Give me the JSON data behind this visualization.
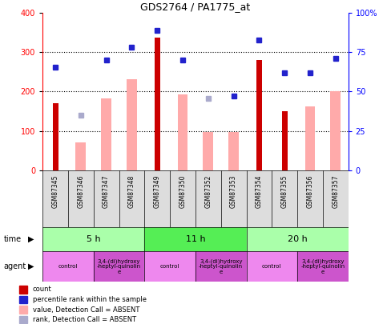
{
  "title": "GDS2764 / PA1775_at",
  "samples": [
    "GSM87345",
    "GSM87346",
    "GSM87347",
    "GSM87348",
    "GSM87349",
    "GSM87350",
    "GSM87352",
    "GSM87353",
    "GSM87354",
    "GSM87355",
    "GSM87356",
    "GSM87357"
  ],
  "count_values": [
    170,
    null,
    null,
    null,
    337,
    null,
    null,
    null,
    280,
    150,
    null,
    null
  ],
  "count_color": "#cc0000",
  "pink_bar_values": [
    null,
    70,
    183,
    232,
    null,
    193,
    97,
    97,
    null,
    null,
    163,
    200
  ],
  "pink_bar_color": "#ffaaaa",
  "blue_square_values": [
    262,
    null,
    280,
    312,
    356,
    280,
    null,
    188,
    332,
    248,
    248,
    284
  ],
  "blue_square_color": "#2222cc",
  "lavender_square_values": [
    null,
    140,
    null,
    null,
    null,
    null,
    183,
    null,
    null,
    null,
    null,
    null
  ],
  "lavender_square_color": "#aaaacc",
  "ylim_left": [
    0,
    400
  ],
  "left_ticks": [
    0,
    100,
    200,
    300,
    400
  ],
  "right_ticks": [
    0,
    25,
    50,
    75,
    100
  ],
  "right_tick_labels": [
    "0",
    "25",
    "50",
    "75",
    "100%"
  ],
  "dotted_lines": [
    100,
    200,
    300
  ],
  "time_groups": [
    {
      "label": "5 h",
      "start": 0,
      "end": 4,
      "color": "#aaffaa"
    },
    {
      "label": "11 h",
      "start": 4,
      "end": 8,
      "color": "#55ee55"
    },
    {
      "label": "20 h",
      "start": 8,
      "end": 12,
      "color": "#aaffaa"
    }
  ],
  "agent_groups": [
    {
      "label": "control",
      "start": 0,
      "end": 2,
      "color": "#ee88ee"
    },
    {
      "label": "3,4-(di)hydroxy\n-heptyl-quinolin\ne",
      "start": 2,
      "end": 4,
      "color": "#cc55cc"
    },
    {
      "label": "control",
      "start": 4,
      "end": 6,
      "color": "#ee88ee"
    },
    {
      "label": "3,4-(di)hydroxy\n-heptyl-quinolin\ne",
      "start": 6,
      "end": 8,
      "color": "#cc55cc"
    },
    {
      "label": "control",
      "start": 8,
      "end": 10,
      "color": "#ee88ee"
    },
    {
      "label": "3,4-(di)hydroxy\n-heptyl-quinolin\ne",
      "start": 10,
      "end": 12,
      "color": "#cc55cc"
    }
  ],
  "legend_items": [
    {
      "label": "count",
      "color": "#cc0000"
    },
    {
      "label": "percentile rank within the sample",
      "color": "#2222cc"
    },
    {
      "label": "value, Detection Call = ABSENT",
      "color": "#ffaaaa"
    },
    {
      "label": "rank, Detection Call = ABSENT",
      "color": "#aaaacc"
    }
  ]
}
